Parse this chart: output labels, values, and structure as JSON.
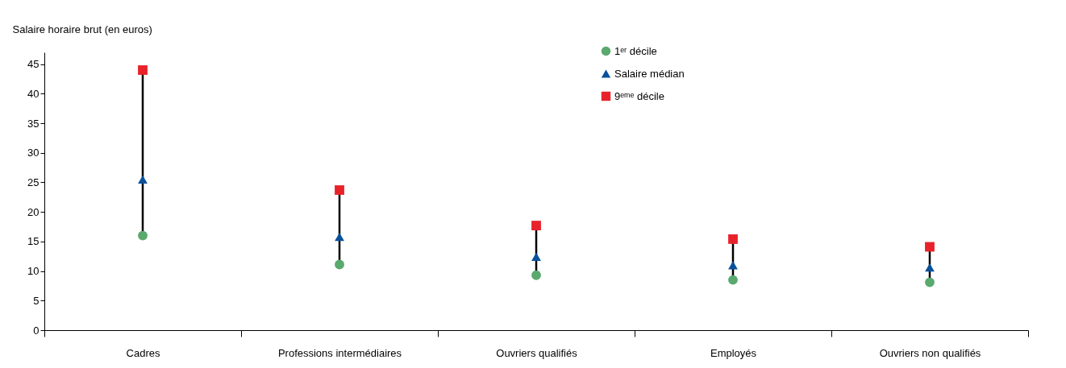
{
  "chart_data": {
    "type": "scatter",
    "ylabel": "Salaire horaire brut (en euros)",
    "categories": [
      "Cadres",
      "Professions intermédiaires",
      "Ouvriers qualifiés",
      "Employés",
      "Ouvriers non qualifiés"
    ],
    "series": [
      {
        "name": "1ᵉʳ décile",
        "color": "#5aa96e",
        "marker": "circle",
        "values": [
          16.0,
          11.1,
          9.3,
          8.5,
          8.1
        ]
      },
      {
        "name": "Salaire médian",
        "color": "#0a519c",
        "marker": "triangle",
        "values": [
          25.5,
          15.8,
          12.4,
          11.0,
          10.6
        ]
      },
      {
        "name": "9ᵉᵐᵉ décile",
        "color": "#e8222a",
        "marker": "square",
        "values": [
          44.0,
          23.7,
          17.7,
          15.4,
          14.1
        ]
      }
    ],
    "ylim": [
      0,
      47
    ],
    "yticks": [
      0,
      5,
      10,
      15,
      20,
      25,
      30,
      35,
      40,
      45
    ],
    "grid": false,
    "legend": "top"
  }
}
